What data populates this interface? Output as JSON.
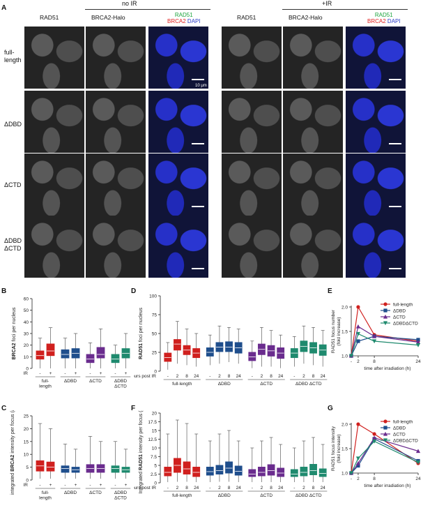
{
  "panel_letters": {
    "A": "A",
    "B": "B",
    "C": "C",
    "D": "D",
    "E": "E",
    "F": "F",
    "G": "G"
  },
  "panelA": {
    "group_no_ir": "no IR",
    "group_ir": "+IR",
    "col_rad51": "RAD51",
    "col_brca2": "BRCA2-Halo",
    "merge_rad51": "RAD51",
    "merge_brca2": "BRCA2",
    "merge_dapi": "DAPI",
    "row_full_1": "full-",
    "row_full_2": "length",
    "row_ddbd": "ΔDBD",
    "row_dctd": "ΔCTD",
    "row_both_1": "ΔDBD",
    "row_both_2": "ΔCTD",
    "scale_label": "10 μm"
  },
  "colors": {
    "full": "#d0201e",
    "ddbd": "#1f4e8c",
    "dctd": "#6a2c8e",
    "both": "#1f8a6e",
    "rad51_green": "#1aa33b",
    "brca2_red": "#e02020",
    "dapi_blue": "#2a3cc8"
  },
  "chart_data": [
    {
      "id": "B",
      "type": "box",
      "ylabel_pre": "",
      "ylabel_bold": "BRCA2",
      "ylabel_post": " foci per nucleus",
      "ylim": [
        0,
        60
      ],
      "yticks": [
        "0",
        "10",
        "20",
        "30",
        "40",
        "50",
        "60"
      ],
      "ir_label": "IR",
      "ir_ticks": [
        "-",
        "+",
        "-",
        "+",
        "-",
        "+",
        "-",
        "+"
      ],
      "group_labels": [
        [
          "full-",
          "length"
        ],
        [
          "ΔDBD"
        ],
        [
          "ΔCTD"
        ],
        [
          "ΔDBD",
          "ΔCTD"
        ]
      ],
      "boxes": [
        {
          "group": "full",
          "q1": 8,
          "med": 11,
          "q3": 15,
          "lo": 0,
          "hi": 26
        },
        {
          "group": "full",
          "q1": 11,
          "med": 15,
          "q3": 21,
          "lo": 0,
          "hi": 35
        },
        {
          "group": "ddbd",
          "q1": 9,
          "med": 12,
          "q3": 16,
          "lo": 0,
          "hi": 26
        },
        {
          "group": "ddbd",
          "q1": 9,
          "med": 13,
          "q3": 17,
          "lo": 0,
          "hi": 30
        },
        {
          "group": "dctd",
          "q1": 5,
          "med": 8,
          "q3": 12,
          "lo": 0,
          "hi": 22
        },
        {
          "group": "dctd",
          "q1": 9,
          "med": 12,
          "q3": 18,
          "lo": 0,
          "hi": 34
        },
        {
          "group": "both",
          "q1": 5,
          "med": 8,
          "q3": 12,
          "lo": 0,
          "hi": 20
        },
        {
          "group": "both",
          "q1": 9,
          "med": 13,
          "q3": 17,
          "lo": 0,
          "hi": 30
        }
      ]
    },
    {
      "id": "C",
      "type": "box",
      "ylabel_pre": "integrated ",
      "ylabel_bold": "BRCA2",
      "ylabel_post": " intensity per focus (a.u.)",
      "ylim": [
        0,
        25
      ],
      "yticks": [
        "0",
        "5",
        "10",
        "15",
        "20",
        "25"
      ],
      "ir_label": "IR",
      "ir_ticks": [
        "-",
        "+",
        "-",
        "+",
        "-",
        "+",
        "-",
        "+"
      ],
      "group_labels": [
        [
          "full-",
          "length"
        ],
        [
          "ΔDBD"
        ],
        [
          "ΔCTD"
        ],
        [
          "ΔDBD",
          "ΔCTD"
        ]
      ],
      "boxes": [
        {
          "group": "full",
          "q1": 3.5,
          "med": 5.5,
          "q3": 7.5,
          "lo": 0.5,
          "hi": 22
        },
        {
          "group": "full",
          "q1": 3.5,
          "med": 5,
          "q3": 7,
          "lo": 0.5,
          "hi": 20
        },
        {
          "group": "ddbd",
          "q1": 3,
          "med": 4.5,
          "q3": 5.5,
          "lo": 0.5,
          "hi": 14
        },
        {
          "group": "ddbd",
          "q1": 3,
          "med": 4,
          "q3": 5,
          "lo": 0.5,
          "hi": 12
        },
        {
          "group": "dctd",
          "q1": 3,
          "med": 4.5,
          "q3": 6,
          "lo": 0.5,
          "hi": 17
        },
        {
          "group": "dctd",
          "q1": 3,
          "med": 4.5,
          "q3": 6,
          "lo": 0.5,
          "hi": 15
        },
        {
          "group": "both",
          "q1": 3,
          "med": 4.5,
          "q3": 5.5,
          "lo": 0.5,
          "hi": 15
        },
        {
          "group": "both",
          "q1": 3,
          "med": 4,
          "q3": 5,
          "lo": 0.5,
          "hi": 12
        }
      ]
    },
    {
      "id": "D",
      "type": "box",
      "ylabel_pre": "",
      "ylabel_bold": "RAD51",
      "ylabel_post": " foci per nucleus",
      "ylim": [
        0,
        100
      ],
      "yticks": [
        "0",
        "25",
        "50",
        "75",
        "100"
      ],
      "ir_label": "hours post IR",
      "ir_ticks": [
        "-",
        "2",
        "8",
        "24",
        "-",
        "2",
        "8",
        "24",
        "-",
        "2",
        "8",
        "24",
        "-",
        "2",
        "8",
        "24"
      ],
      "group_labels": [
        [
          "full-length"
        ],
        [
          "ΔDBD"
        ],
        [
          "ΔCTD"
        ],
        [
          "ΔDBD ΔCTD"
        ]
      ],
      "boxes": [
        {
          "group": "full",
          "q1": 13,
          "med": 18,
          "q3": 24,
          "lo": 2,
          "hi": 38
        },
        {
          "group": "full",
          "q1": 28,
          "med": 36,
          "q3": 42,
          "lo": 10,
          "hi": 66
        },
        {
          "group": "full",
          "q1": 22,
          "med": 28,
          "q3": 34,
          "lo": 8,
          "hi": 56
        },
        {
          "group": "full",
          "q1": 18,
          "med": 24,
          "q3": 30,
          "lo": 6,
          "hi": 50
        },
        {
          "group": "ddbd",
          "q1": 20,
          "med": 25,
          "q3": 31,
          "lo": 8,
          "hi": 48
        },
        {
          "group": "ddbd",
          "q1": 26,
          "med": 32,
          "q3": 38,
          "lo": 10,
          "hi": 60
        },
        {
          "group": "ddbd",
          "q1": 26,
          "med": 32,
          "q3": 39,
          "lo": 12,
          "hi": 58
        },
        {
          "group": "ddbd",
          "q1": 24,
          "med": 31,
          "q3": 38,
          "lo": 10,
          "hi": 56
        },
        {
          "group": "dctd",
          "q1": 14,
          "med": 19,
          "q3": 25,
          "lo": 4,
          "hi": 40
        },
        {
          "group": "dctd",
          "q1": 22,
          "med": 29,
          "q3": 36,
          "lo": 6,
          "hi": 58
        },
        {
          "group": "dctd",
          "q1": 20,
          "med": 27,
          "q3": 34,
          "lo": 6,
          "hi": 54
        },
        {
          "group": "dctd",
          "q1": 17,
          "med": 24,
          "q3": 31,
          "lo": 4,
          "hi": 48
        },
        {
          "group": "both",
          "q1": 18,
          "med": 24,
          "q3": 30,
          "lo": 6,
          "hi": 46
        },
        {
          "group": "both",
          "q1": 26,
          "med": 33,
          "q3": 40,
          "lo": 10,
          "hi": 60
        },
        {
          "group": "both",
          "q1": 24,
          "med": 31,
          "q3": 38,
          "lo": 8,
          "hi": 58
        },
        {
          "group": "both",
          "q1": 21,
          "med": 28,
          "q3": 35,
          "lo": 6,
          "hi": 54
        }
      ]
    },
    {
      "id": "F",
      "type": "box",
      "ylabel_pre": "Integrated ",
      "ylabel_bold": "RAD51",
      "ylabel_post": " intensity per focus (a.u)",
      "ylim": [
        0,
        20
      ],
      "yticks": [
        "0",
        "2.5",
        "5",
        "7.5",
        "10",
        "12.5",
        "15",
        "17.5",
        "20"
      ],
      "ir_label": "hours post IR",
      "ir_ticks": [
        "-",
        "2",
        "8",
        "24",
        "-",
        "2",
        "8",
        "24",
        "-",
        "2",
        "8",
        "24",
        "-",
        "2",
        "8",
        "24"
      ],
      "group_labels": [
        [
          "full-length"
        ],
        [
          "ΔDBD"
        ],
        [
          "ΔCTD"
        ],
        [
          "ΔDBD ΔCTD"
        ]
      ],
      "boxes": [
        {
          "group": "full",
          "q1": 2,
          "med": 3,
          "q3": 4.5,
          "lo": 0.2,
          "hi": 14
        },
        {
          "group": "full",
          "q1": 3,
          "med": 5,
          "q3": 7,
          "lo": 0.3,
          "hi": 18
        },
        {
          "group": "full",
          "q1": 2.5,
          "med": 4,
          "q3": 6,
          "lo": 0.3,
          "hi": 17
        },
        {
          "group": "full",
          "q1": 1.8,
          "med": 3,
          "q3": 4.5,
          "lo": 0.2,
          "hi": 14
        },
        {
          "group": "ddbd",
          "q1": 2.2,
          "med": 3.2,
          "q3": 4.5,
          "lo": 0.2,
          "hi": 12
        },
        {
          "group": "ddbd",
          "q1": 2.5,
          "med": 3.5,
          "q3": 5,
          "lo": 0.3,
          "hi": 14
        },
        {
          "group": "ddbd",
          "q1": 2.8,
          "med": 4.2,
          "q3": 6,
          "lo": 0.3,
          "hi": 15
        },
        {
          "group": "ddbd",
          "q1": 2.2,
          "med": 3.3,
          "q3": 4.8,
          "lo": 0.2,
          "hi": 12
        },
        {
          "group": "dctd",
          "q1": 1.8,
          "med": 2.5,
          "q3": 3.8,
          "lo": 0.2,
          "hi": 10
        },
        {
          "group": "dctd",
          "q1": 2,
          "med": 3,
          "q3": 4.5,
          "lo": 0.2,
          "hi": 12
        },
        {
          "group": "dctd",
          "q1": 2.2,
          "med": 3.5,
          "q3": 5.2,
          "lo": 0.2,
          "hi": 13
        },
        {
          "group": "dctd",
          "q1": 1.8,
          "med": 2.8,
          "q3": 4.2,
          "lo": 0.2,
          "hi": 11
        },
        {
          "group": "both",
          "q1": 1.8,
          "med": 2.5,
          "q3": 3.8,
          "lo": 0.2,
          "hi": 10
        },
        {
          "group": "both",
          "q1": 2,
          "med": 3,
          "q3": 4.5,
          "lo": 0.2,
          "hi": 12
        },
        {
          "group": "both",
          "q1": 2.3,
          "med": 3.5,
          "q3": 5.3,
          "lo": 0.2,
          "hi": 13
        },
        {
          "group": "both",
          "q1": 1.8,
          "med": 2.7,
          "q3": 4,
          "lo": 0.2,
          "hi": 11
        }
      ]
    },
    {
      "id": "E",
      "type": "line",
      "ylabel": [
        "RAD51 focus number",
        "(fold increase)"
      ],
      "xlabel": "time after irradiation (h)",
      "x": [
        "-",
        "2",
        "8",
        "24"
      ],
      "ylim": [
        1.0,
        2.0
      ],
      "yticks": [
        "1.0",
        "1.5",
        "2.0"
      ],
      "series": [
        {
          "name": "full-length",
          "group": "full",
          "marker": "circle",
          "values": [
            1.0,
            2.0,
            1.43,
            1.3
          ]
        },
        {
          "name": "ΔDBD",
          "group": "ddbd",
          "marker": "square",
          "values": [
            1.0,
            1.3,
            1.4,
            1.33
          ]
        },
        {
          "name": "ΔCTD",
          "group": "dctd",
          "marker": "triangle-up",
          "values": [
            1.0,
            1.6,
            1.4,
            1.28
          ]
        },
        {
          "name": "ΔDBDΔCTD",
          "group": "both",
          "marker": "triangle-down",
          "values": [
            1.0,
            1.45,
            1.3,
            1.22
          ]
        }
      ]
    },
    {
      "id": "G",
      "type": "line",
      "ylabel": [
        "RAD51 focus intensity",
        "(fold increase)"
      ],
      "xlabel": "time after irradiation (h)",
      "x": [
        "-",
        "2",
        "8",
        "24"
      ],
      "ylim": [
        1.0,
        2.0
      ],
      "yticks": [
        "1.0",
        "1.5",
        "2.0"
      ],
      "series": [
        {
          "name": "full-length",
          "group": "full",
          "marker": "circle",
          "values": [
            1.0,
            2.0,
            1.8,
            1.2
          ]
        },
        {
          "name": "ΔDBD",
          "group": "ddbd",
          "marker": "square",
          "values": [
            1.0,
            1.15,
            1.7,
            1.25
          ]
        },
        {
          "name": "ΔCTD",
          "group": "dctd",
          "marker": "triangle-up",
          "values": [
            1.0,
            1.2,
            1.72,
            1.45
          ]
        },
        {
          "name": "ΔDBDΔCTD",
          "group": "both",
          "marker": "triangle-down",
          "values": [
            1.0,
            1.3,
            1.65,
            1.22
          ]
        }
      ]
    }
  ]
}
